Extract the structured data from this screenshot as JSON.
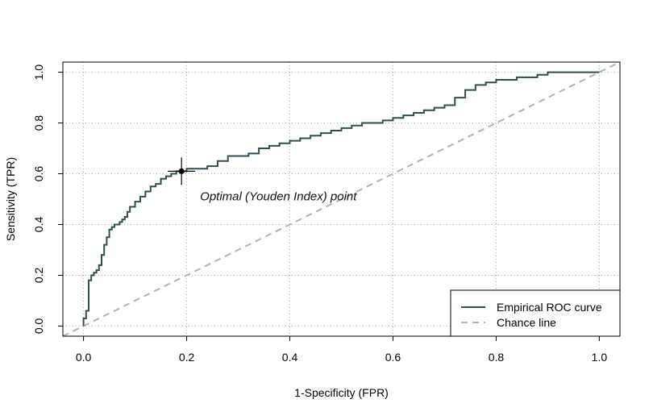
{
  "chart_data": {
    "type": "line",
    "xlabel": "1-Specificity (FPR)",
    "ylabel": "Sensitivity (TPR)",
    "xlim": [
      -0.04,
      1.04
    ],
    "ylim": [
      -0.04,
      1.04
    ],
    "xticks": [
      0.0,
      0.2,
      0.4,
      0.6,
      0.8,
      1.0
    ],
    "yticks": [
      0.0,
      0.2,
      0.4,
      0.6,
      0.8,
      1.0
    ],
    "xtick_labels": [
      "0.0",
      "0.2",
      "0.4",
      "0.6",
      "0.8",
      "1.0"
    ],
    "ytick_labels": [
      "0.0",
      "0.2",
      "0.4",
      "0.6",
      "0.8",
      "1.0"
    ],
    "grid": true,
    "legend_position": "bottom-right",
    "series": [
      {
        "name": "Empirical ROC curve",
        "style": "solid",
        "color": "#2f4f4f",
        "x": [
          0.0,
          0.0,
          0.005,
          0.005,
          0.01,
          0.01,
          0.015,
          0.02,
          0.025,
          0.03,
          0.035,
          0.04,
          0.045,
          0.05,
          0.055,
          0.06,
          0.07,
          0.075,
          0.08,
          0.085,
          0.09,
          0.1,
          0.11,
          0.12,
          0.13,
          0.14,
          0.15,
          0.16,
          0.17,
          0.18,
          0.19,
          0.2,
          0.22,
          0.24,
          0.26,
          0.28,
          0.3,
          0.32,
          0.34,
          0.36,
          0.38,
          0.4,
          0.42,
          0.44,
          0.46,
          0.48,
          0.5,
          0.52,
          0.54,
          0.56,
          0.58,
          0.6,
          0.62,
          0.64,
          0.66,
          0.68,
          0.7,
          0.72,
          0.74,
          0.76,
          0.78,
          0.8,
          0.82,
          0.84,
          0.86,
          0.88,
          0.9,
          0.92,
          0.94,
          0.96,
          0.98,
          1.0
        ],
        "y": [
          0.0,
          0.03,
          0.04,
          0.06,
          0.06,
          0.18,
          0.2,
          0.21,
          0.22,
          0.24,
          0.28,
          0.32,
          0.35,
          0.38,
          0.39,
          0.4,
          0.41,
          0.42,
          0.43,
          0.45,
          0.47,
          0.49,
          0.51,
          0.53,
          0.55,
          0.56,
          0.58,
          0.59,
          0.6,
          0.61,
          0.61,
          0.62,
          0.62,
          0.63,
          0.65,
          0.67,
          0.67,
          0.68,
          0.7,
          0.71,
          0.72,
          0.73,
          0.74,
          0.75,
          0.76,
          0.77,
          0.78,
          0.79,
          0.8,
          0.8,
          0.81,
          0.82,
          0.83,
          0.84,
          0.85,
          0.86,
          0.87,
          0.9,
          0.93,
          0.95,
          0.96,
          0.97,
          0.97,
          0.98,
          0.98,
          0.99,
          1.0,
          1.0,
          1.0,
          1.0,
          1.0,
          1.0
        ]
      },
      {
        "name": "Chance line",
        "style": "dashed",
        "color": "#b3b3b3",
        "x": [
          -0.04,
          1.04
        ],
        "y": [
          -0.04,
          1.04
        ]
      }
    ],
    "optimal_point": {
      "x": 0.19,
      "y": 0.61,
      "label": "Optimal (Youden Index) point"
    }
  }
}
